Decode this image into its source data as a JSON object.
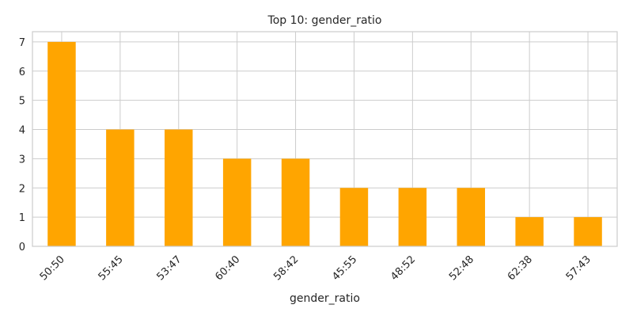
{
  "chart_data": {
    "type": "bar",
    "title": "Top 10: gender_ratio",
    "xlabel": "gender_ratio",
    "ylabel": "",
    "categories": [
      "50:50",
      "55:45",
      "53:47",
      "60:40",
      "58:42",
      "45:55",
      "48:52",
      "52:48",
      "62:38",
      "57:43"
    ],
    "values": [
      7,
      4,
      4,
      3,
      3,
      2,
      2,
      2,
      1,
      1
    ],
    "ylim": [
      0,
      7.35
    ],
    "yticks": [
      0,
      1,
      2,
      3,
      4,
      5,
      6,
      7
    ],
    "grid": true,
    "legend": "none",
    "bar_color": "#FFA500",
    "grid_color": "#cccccc",
    "axes_edge_color": "#cccccc"
  }
}
